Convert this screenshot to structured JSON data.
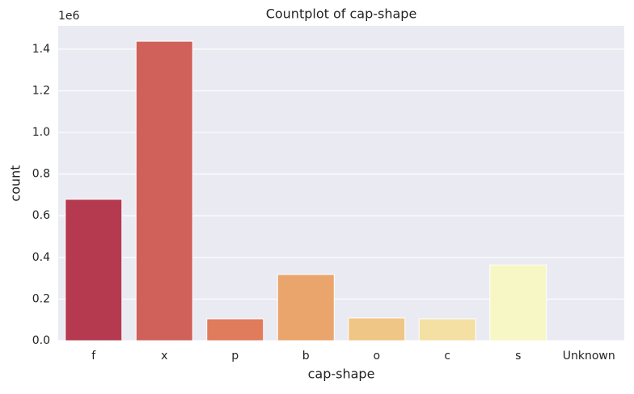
{
  "chart_data": {
    "type": "bar",
    "title": "Countplot of cap-shape",
    "xlabel": "cap-shape",
    "ylabel": "count",
    "offset_label": "1e6",
    "categories": [
      "f",
      "x",
      "p",
      "b",
      "o",
      "c",
      "s",
      "Unknown"
    ],
    "values": [
      679000,
      1438000,
      105000,
      318000,
      109000,
      105000,
      364000,
      400
    ],
    "colors": [
      "#b5394f",
      "#d0605a",
      "#e07b5b",
      "#eaa56c",
      "#efc686",
      "#f3e0a2",
      "#f7f7c5",
      "#fbf8d6"
    ],
    "ylim": [
      0,
      1512000
    ],
    "yticks": [
      {
        "value": 0,
        "label": "0.0"
      },
      {
        "value": 200000,
        "label": "0.2"
      },
      {
        "value": 400000,
        "label": "0.4"
      },
      {
        "value": 600000,
        "label": "0.6"
      },
      {
        "value": 800000,
        "label": "0.8"
      },
      {
        "value": 1000000,
        "label": "1.0"
      },
      {
        "value": 1200000,
        "label": "1.2"
      },
      {
        "value": 1400000,
        "label": "1.4"
      }
    ],
    "grid": true
  }
}
